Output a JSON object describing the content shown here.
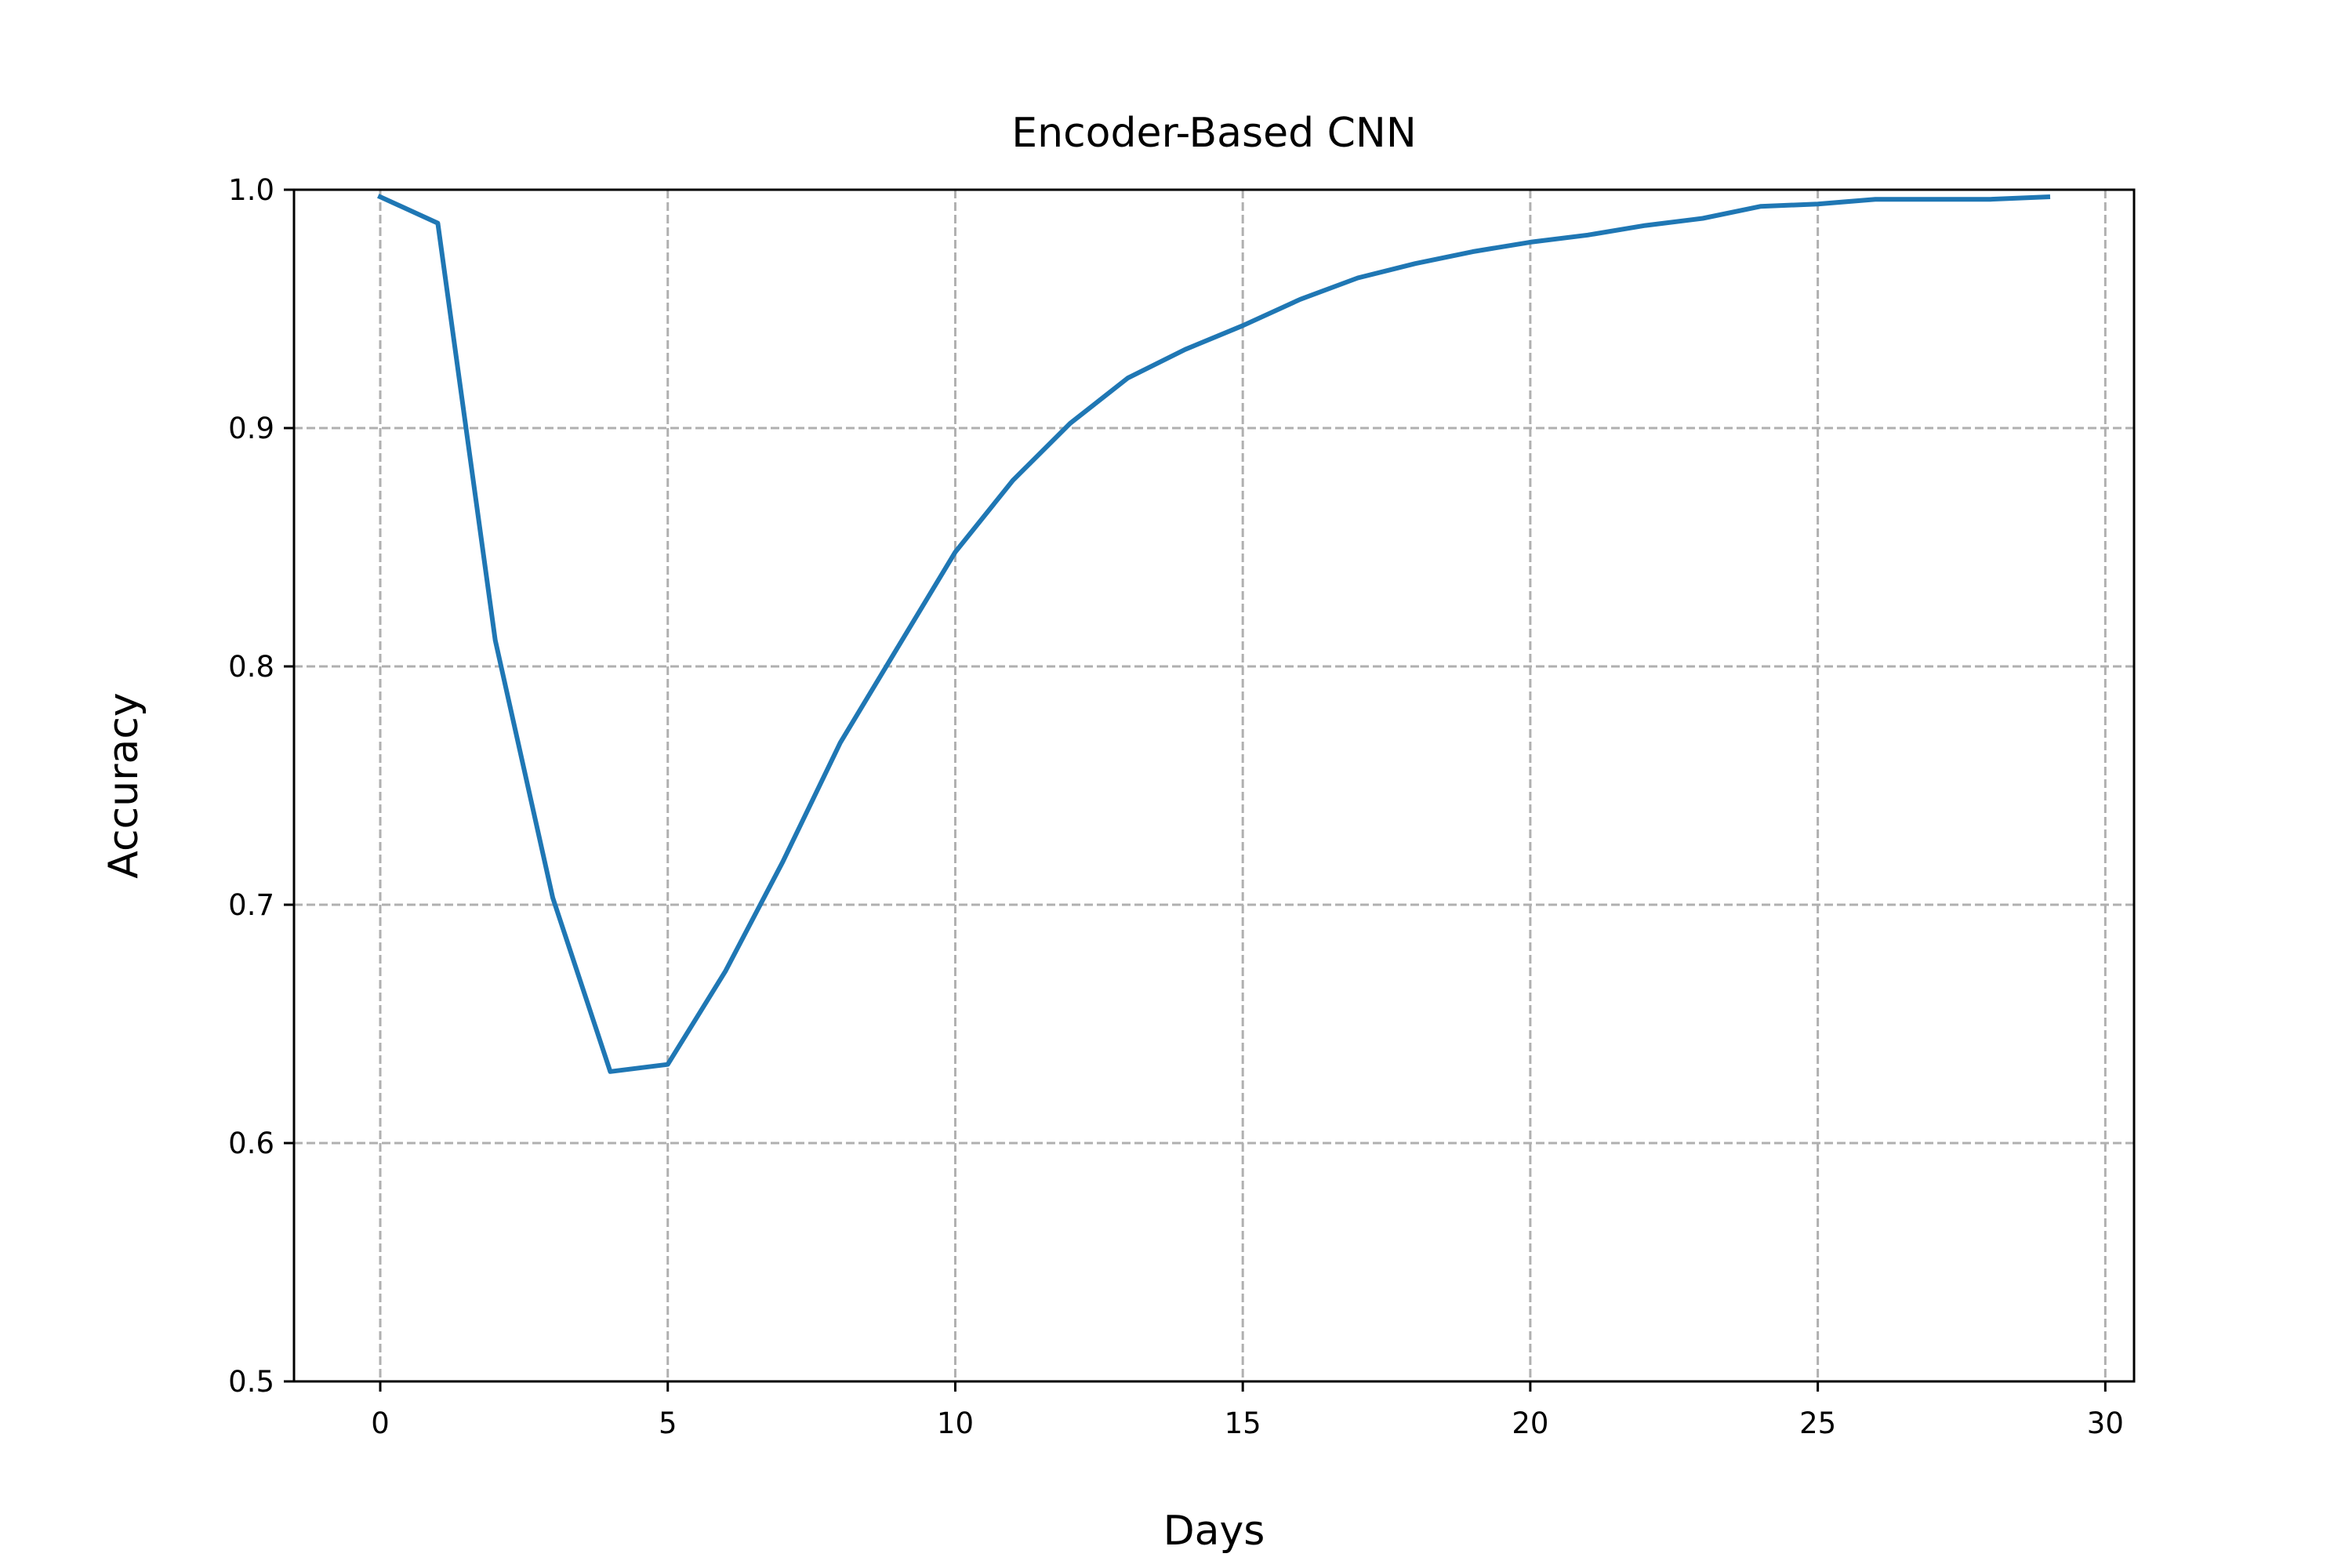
{
  "chart_data": {
    "type": "line",
    "title": "Encoder-Based CNN",
    "xlabel": "Days",
    "ylabel": "Accuracy",
    "xlim": [
      -1.5,
      30.5
    ],
    "ylim": [
      0.5,
      1.0
    ],
    "xticks": [
      0,
      5,
      10,
      15,
      20,
      25,
      30
    ],
    "yticks": [
      0.5,
      0.6,
      0.7,
      0.8,
      0.9,
      1.0
    ],
    "xtick_labels": [
      "0",
      "5",
      "10",
      "15",
      "20",
      "25",
      "30"
    ],
    "ytick_labels": [
      "0.5",
      "0.6",
      "0.7",
      "0.8",
      "0.9",
      "1.0"
    ],
    "grid": true,
    "grid_style": "dashed",
    "series": [
      {
        "color": "#1f77b4",
        "x": [
          0,
          1,
          2,
          3,
          4,
          5,
          6,
          7,
          8,
          9,
          10,
          11,
          12,
          13,
          14,
          15,
          16,
          17,
          18,
          19,
          20,
          21,
          22,
          23,
          24,
          25,
          26,
          27,
          28,
          29
        ],
        "values": [
          0.997,
          0.986,
          0.811,
          0.703,
          0.63,
          0.633,
          0.672,
          0.718,
          0.768,
          0.808,
          0.848,
          0.878,
          0.902,
          0.921,
          0.933,
          0.943,
          0.954,
          0.963,
          0.969,
          0.974,
          0.978,
          0.981,
          0.985,
          0.988,
          0.993,
          0.994,
          0.996,
          0.996,
          0.996,
          0.997
        ]
      }
    ]
  }
}
